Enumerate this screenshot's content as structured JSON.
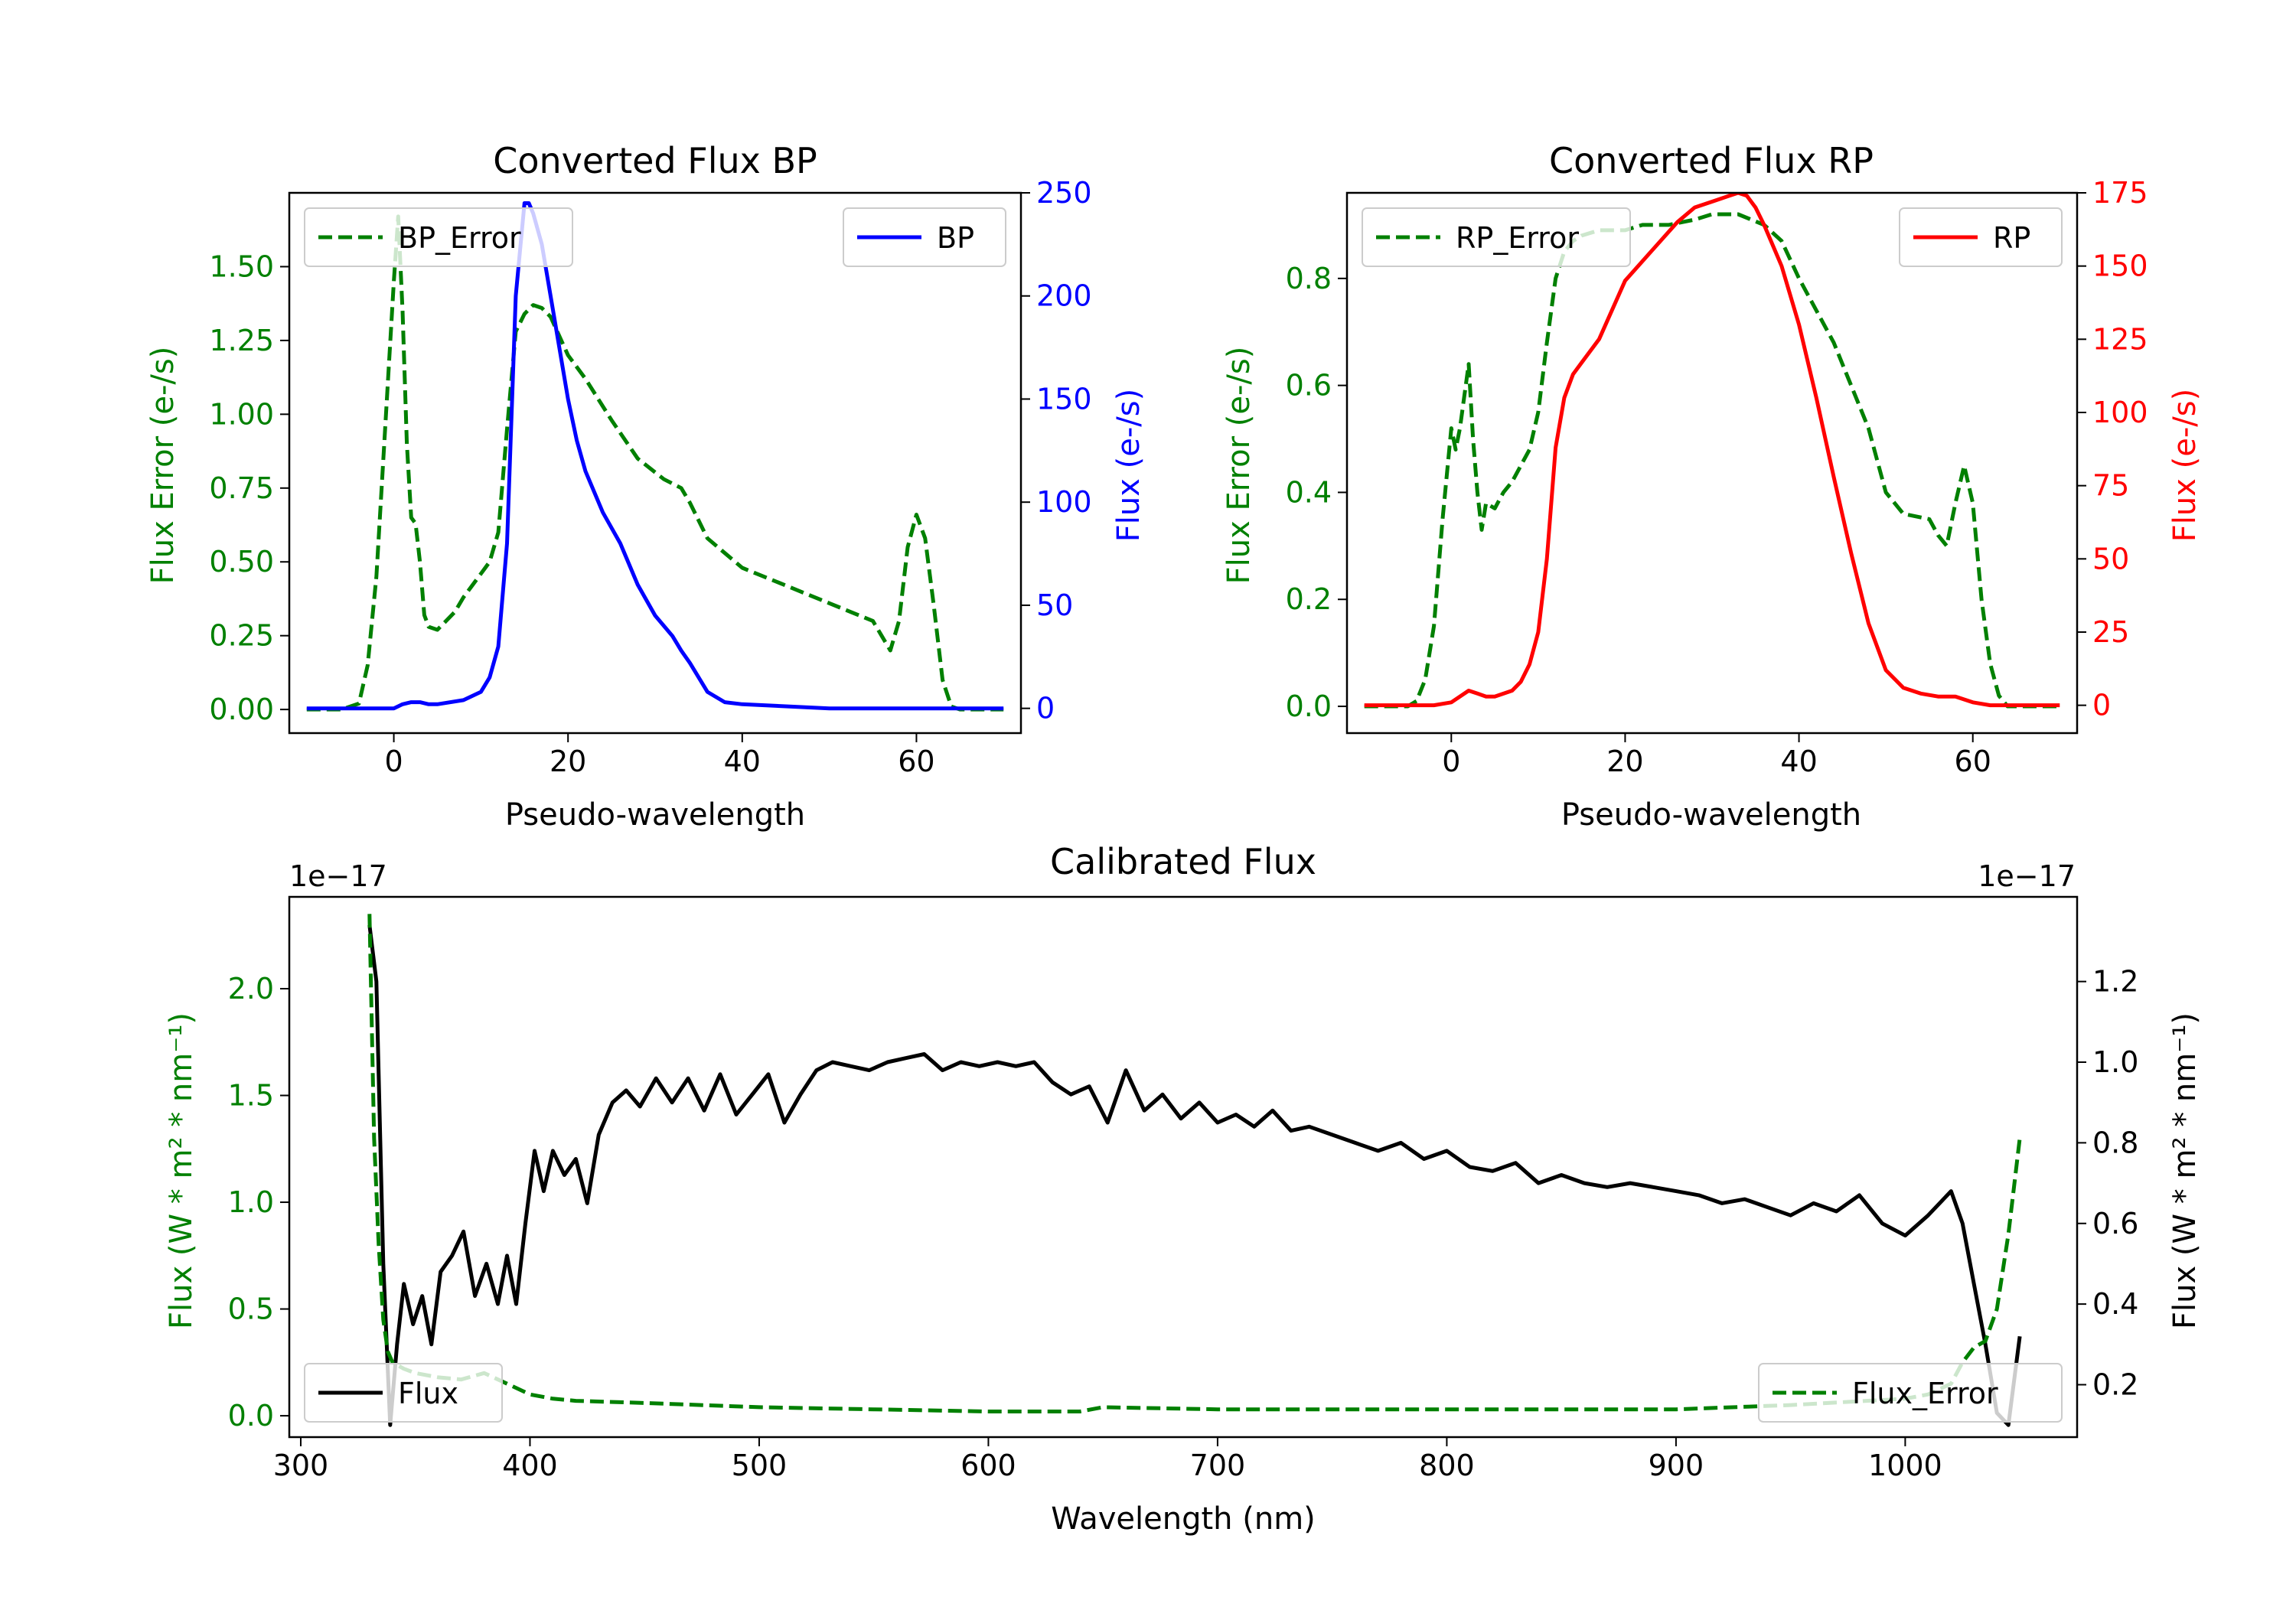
{
  "chart_data": [
    {
      "type": "line",
      "title": "Converted Flux BP",
      "xlabel": "Pseudo-wavelength",
      "xlim": [
        -12,
        72
      ],
      "xticks": [
        0,
        20,
        40,
        60
      ],
      "y_left": {
        "label": "Flux Error (e-/s)",
        "color": "#008000",
        "lim": [
          -0.08,
          1.75
        ],
        "ticks": [
          "0.00",
          "0.25",
          "0.50",
          "0.75",
          "1.00",
          "1.25",
          "1.50"
        ]
      },
      "y_right": {
        "label": "Flux (e-/s)",
        "color": "#0000ff",
        "lim": [
          -12,
          250
        ],
        "ticks": [
          "0",
          "50",
          "100",
          "150",
          "200",
          "250"
        ]
      },
      "series": [
        {
          "name": "BP_Error",
          "axis": "left",
          "style": "dashed",
          "color": "#008000",
          "x": [
            -10,
            -6,
            -4,
            -3,
            -2,
            -1,
            0,
            0.5,
            1,
            1.5,
            2,
            2.5,
            3,
            3.5,
            4,
            5,
            6,
            7,
            8,
            9,
            10,
            11,
            12,
            13,
            14,
            15,
            16,
            17,
            18,
            20,
            22,
            25,
            28,
            31,
            33,
            34,
            36,
            40,
            45,
            50,
            55,
            56,
            57,
            58,
            59,
            60,
            61,
            62,
            63,
            64,
            65,
            70
          ],
          "values": [
            0,
            0,
            0.02,
            0.15,
            0.45,
            0.95,
            1.45,
            1.67,
            1.35,
            0.9,
            0.65,
            0.63,
            0.5,
            0.32,
            0.28,
            0.27,
            0.3,
            0.33,
            0.38,
            0.42,
            0.46,
            0.5,
            0.6,
            0.95,
            1.28,
            1.34,
            1.37,
            1.36,
            1.33,
            1.2,
            1.12,
            0.98,
            0.85,
            0.78,
            0.75,
            0.7,
            0.58,
            0.48,
            0.42,
            0.36,
            0.3,
            0.25,
            0.2,
            0.3,
            0.55,
            0.66,
            0.58,
            0.35,
            0.1,
            0.01,
            0,
            0
          ]
        },
        {
          "name": "BP",
          "axis": "right",
          "style": "solid",
          "color": "#0000ff",
          "x": [
            -10,
            -5,
            0,
            1,
            2,
            3,
            4,
            5,
            8,
            10,
            11,
            12,
            13,
            14,
            15,
            15.5,
            16,
            17,
            18,
            19,
            20,
            21,
            22,
            24,
            26,
            28,
            30,
            32,
            33,
            34,
            36,
            38,
            40,
            45,
            50,
            55,
            60,
            65,
            70
          ],
          "values": [
            0,
            0,
            0,
            2,
            3,
            3,
            2,
            2,
            4,
            8,
            15,
            30,
            80,
            200,
            245,
            245,
            240,
            225,
            200,
            175,
            150,
            130,
            115,
            95,
            80,
            60,
            45,
            35,
            28,
            22,
            8,
            3,
            2,
            1,
            0,
            0,
            0,
            0,
            0
          ]
        }
      ],
      "legends": [
        {
          "label": "BP_Error",
          "position": "upper-left"
        },
        {
          "label": "BP",
          "position": "upper-right"
        }
      ]
    },
    {
      "type": "line",
      "title": "Converted Flux RP",
      "xlabel": "Pseudo-wavelength",
      "xlim": [
        -12,
        72
      ],
      "xticks": [
        0,
        20,
        40,
        60
      ],
      "y_left": {
        "label": "Flux Error (e-/s)",
        "color": "#008000",
        "lim": [
          -0.05,
          0.96
        ],
        "ticks": [
          "0.0",
          "0.2",
          "0.4",
          "0.6",
          "0.8"
        ]
      },
      "y_right": {
        "label": "Flux (e-/s)",
        "color": "#ff0000",
        "lim": [
          -9.5,
          175
        ],
        "ticks": [
          "0",
          "25",
          "50",
          "75",
          "100",
          "125",
          "150",
          "175"
        ]
      },
      "series": [
        {
          "name": "RP_Error",
          "axis": "left",
          "style": "dashed",
          "color": "#008000",
          "x": [
            -10,
            -5,
            -4,
            -3,
            -2,
            -1,
            0,
            0.5,
            1,
            1.5,
            2,
            2.5,
            3,
            3.5,
            4,
            5,
            6,
            7,
            8,
            9,
            10,
            11,
            12,
            13,
            14,
            15,
            17,
            20,
            22,
            25,
            28,
            30,
            33,
            36,
            38,
            40,
            44,
            48,
            50,
            52,
            55,
            56,
            57,
            58,
            59,
            60,
            61,
            62,
            63,
            64,
            70
          ],
          "values": [
            0,
            0,
            0.01,
            0.05,
            0.15,
            0.35,
            0.52,
            0.48,
            0.52,
            0.58,
            0.64,
            0.5,
            0.4,
            0.33,
            0.38,
            0.37,
            0.4,
            0.42,
            0.45,
            0.48,
            0.55,
            0.68,
            0.8,
            0.85,
            0.87,
            0.88,
            0.89,
            0.89,
            0.9,
            0.9,
            0.91,
            0.92,
            0.92,
            0.9,
            0.87,
            0.8,
            0.68,
            0.52,
            0.4,
            0.36,
            0.35,
            0.32,
            0.3,
            0.38,
            0.45,
            0.38,
            0.2,
            0.08,
            0.02,
            0,
            0
          ]
        },
        {
          "name": "RP",
          "axis": "right",
          "style": "solid",
          "color": "#ff0000",
          "x": [
            -10,
            -2,
            0,
            1,
            2,
            3,
            4,
            5,
            7,
            8,
            9,
            10,
            11,
            12,
            13,
            14,
            15,
            17,
            20,
            23,
            26,
            28,
            30,
            32,
            33,
            34,
            35,
            36,
            37,
            38,
            40,
            42,
            44,
            46,
            48,
            50,
            52,
            54,
            56,
            58,
            60,
            62,
            65,
            70
          ],
          "values": [
            0,
            0,
            1,
            3,
            5,
            4,
            3,
            3,
            5,
            8,
            14,
            25,
            50,
            88,
            105,
            113,
            117,
            125,
            145,
            155,
            165,
            170,
            172,
            174,
            175,
            174,
            170,
            164,
            157,
            150,
            130,
            105,
            78,
            52,
            28,
            12,
            6,
            4,
            3,
            3,
            1,
            0,
            0,
            0
          ]
        }
      ],
      "legends": [
        {
          "label": "RP_Error",
          "position": "upper-left"
        },
        {
          "label": "RP",
          "position": "upper-right"
        }
      ]
    },
    {
      "type": "line",
      "title": "Calibrated Flux",
      "xlabel": "Wavelength (nm)",
      "xlim": [
        295,
        1075
      ],
      "xticks": [
        300,
        400,
        500,
        600,
        700,
        800,
        900,
        1000
      ],
      "y_left": {
        "label": "Flux (W * m² * nm⁻¹)",
        "color": "#008000",
        "lim": [
          -0.1,
          2.43
        ],
        "ticks": [
          "0.0",
          "0.5",
          "1.0",
          "1.5",
          "2.0"
        ],
        "offset": "1e−17"
      },
      "y_right": {
        "label": "Flux (W * m² * nm⁻¹)",
        "color": "#000000",
        "lim": [
          0.07,
          1.41
        ],
        "ticks": [
          "0.2",
          "0.4",
          "0.6",
          "0.8",
          "1.0",
          "1.2"
        ],
        "offset": "1e−17"
      },
      "series": [
        {
          "name": "Flux",
          "axis": "right",
          "style": "solid",
          "color": "#000000",
          "x": [
            330,
            333,
            336,
            339,
            342,
            345,
            349,
            353,
            357,
            361,
            366,
            371,
            376,
            381,
            386,
            390,
            394,
            398,
            402,
            406,
            410,
            415,
            420,
            425,
            430,
            436,
            442,
            448,
            455,
            462,
            469,
            476,
            483,
            490,
            497,
            504,
            511,
            518,
            525,
            532,
            540,
            548,
            556,
            564,
            572,
            580,
            588,
            596,
            604,
            612,
            620,
            628,
            636,
            644,
            652,
            660,
            668,
            676,
            684,
            692,
            700,
            708,
            716,
            724,
            732,
            740,
            750,
            760,
            770,
            780,
            790,
            800,
            810,
            820,
            830,
            840,
            850,
            860,
            870,
            880,
            890,
            900,
            910,
            920,
            930,
            940,
            950,
            960,
            970,
            980,
            990,
            1000,
            1010,
            1020,
            1025,
            1030,
            1035,
            1040,
            1045,
            1050
          ],
          "values": [
            1.34,
            1.2,
            0.5,
            0.1,
            0.3,
            0.45,
            0.35,
            0.42,
            0.3,
            0.48,
            0.52,
            0.58,
            0.42,
            0.5,
            0.4,
            0.52,
            0.4,
            0.6,
            0.78,
            0.68,
            0.78,
            0.72,
            0.76,
            0.65,
            0.82,
            0.9,
            0.93,
            0.89,
            0.96,
            0.9,
            0.96,
            0.88,
            0.97,
            0.87,
            0.92,
            0.97,
            0.85,
            0.92,
            0.98,
            1.0,
            0.99,
            0.98,
            1.0,
            1.01,
            1.02,
            0.98,
            1.0,
            0.99,
            1.0,
            0.99,
            1.0,
            0.95,
            0.92,
            0.94,
            0.85,
            0.98,
            0.88,
            0.92,
            0.86,
            0.9,
            0.85,
            0.87,
            0.84,
            0.88,
            0.83,
            0.84,
            0.82,
            0.8,
            0.78,
            0.8,
            0.76,
            0.78,
            0.74,
            0.73,
            0.75,
            0.7,
            0.72,
            0.7,
            0.69,
            0.7,
            0.69,
            0.68,
            0.67,
            0.65,
            0.66,
            0.64,
            0.62,
            0.65,
            0.63,
            0.67,
            0.6,
            0.57,
            0.62,
            0.68,
            0.6,
            0.45,
            0.3,
            0.13,
            0.1,
            0.32
          ]
        },
        {
          "name": "Flux_Error",
          "axis": "left",
          "style": "dashed",
          "color": "#008000",
          "x": [
            330,
            332,
            334,
            336,
            338,
            340,
            345,
            350,
            360,
            370,
            380,
            390,
            400,
            410,
            420,
            450,
            500,
            550,
            600,
            640,
            650,
            700,
            750,
            800,
            850,
            900,
            950,
            1000,
            1010,
            1020,
            1025,
            1030,
            1035,
            1040,
            1045,
            1050
          ],
          "values": [
            2.35,
            1.3,
            0.8,
            0.45,
            0.3,
            0.25,
            0.22,
            0.2,
            0.18,
            0.17,
            0.2,
            0.15,
            0.1,
            0.08,
            0.07,
            0.06,
            0.04,
            0.03,
            0.02,
            0.02,
            0.04,
            0.03,
            0.03,
            0.03,
            0.03,
            0.03,
            0.05,
            0.08,
            0.1,
            0.15,
            0.25,
            0.32,
            0.35,
            0.5,
            0.85,
            1.3
          ]
        }
      ],
      "legends": [
        {
          "label": "Flux",
          "position": "lower-left"
        },
        {
          "label": "Flux_Error",
          "position": "lower-right"
        }
      ]
    }
  ]
}
